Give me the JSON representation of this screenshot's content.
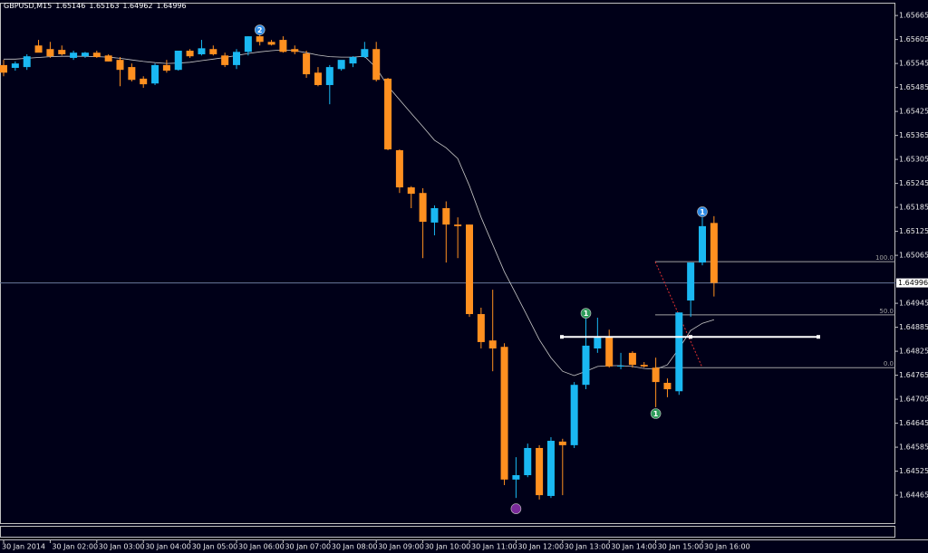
{
  "chart_data": {
    "type": "candlestick",
    "title": "GBPUSD,M15",
    "series": {
      "open": [
        1.65541,
        1.65534,
        1.65536,
        1.6559,
        1.65581,
        1.65579,
        1.65559,
        1.65563,
        1.65572,
        1.65565,
        1.65554,
        1.65536,
        1.65507,
        1.65495,
        1.65541,
        1.65529,
        1.65577,
        1.65568,
        1.65581,
        1.65565,
        1.65541,
        1.65574,
        1.65613,
        1.65599,
        1.65604,
        1.65581,
        1.6557,
        1.65522,
        1.65491,
        1.65531,
        1.65545,
        1.65561,
        1.65581,
        1.65507,
        1.65328,
        1.65235,
        1.65221,
        1.65147,
        1.65183,
        1.65142,
        1.65142,
        1.64918,
        1.64852,
        1.64836,
        1.64504,
        1.64515,
        1.64583,
        1.64463,
        1.64599,
        1.6459,
        1.64741,
        1.64832,
        1.64861,
        1.64787,
        1.64821,
        1.64791,
        1.64784,
        1.64746,
        1.64725,
        1.64952,
        1.65047,
        1.65146
      ],
      "high": [
        1.65554,
        1.6555,
        1.65568,
        1.65604,
        1.65599,
        1.6559,
        1.65577,
        1.65574,
        1.65577,
        1.65568,
        1.65561,
        1.65545,
        1.65513,
        1.65545,
        1.65554,
        1.65577,
        1.65581,
        1.65604,
        1.6559,
        1.65572,
        1.65581,
        1.65613,
        1.65622,
        1.65604,
        1.65613,
        1.6559,
        1.65577,
        1.65536,
        1.65541,
        1.65545,
        1.65563,
        1.65599,
        1.65599,
        1.65509,
        1.6533,
        1.65238,
        1.65233,
        1.6519,
        1.652,
        1.6516,
        1.65142,
        1.64934,
        1.64979,
        1.64845,
        1.6456,
        1.64594,
        1.6459,
        1.6461,
        1.64606,
        1.64748,
        1.64911,
        1.64909,
        1.64879,
        1.64821,
        1.64825,
        1.64798,
        1.64809,
        1.64757,
        1.64922,
        1.65047,
        1.6516,
        1.65163
      ],
      "low": [
        1.65513,
        1.65527,
        1.65529,
        1.65577,
        1.65559,
        1.65565,
        1.65554,
        1.65559,
        1.65559,
        1.6555,
        1.65488,
        1.655,
        1.65484,
        1.65491,
        1.65522,
        1.65527,
        1.65559,
        1.65565,
        1.65565,
        1.65536,
        1.65531,
        1.65565,
        1.6559,
        1.6559,
        1.65572,
        1.65568,
        1.65509,
        1.65488,
        1.65443,
        1.65527,
        1.65536,
        1.65559,
        1.655,
        1.65328,
        1.65221,
        1.65183,
        1.65058,
        1.65115,
        1.65047,
        1.65058,
        1.64911,
        1.64832,
        1.64775,
        1.6449,
        1.64458,
        1.6451,
        1.64454,
        1.64458,
        1.64465,
        1.64583,
        1.6473,
        1.64821,
        1.64784,
        1.6478,
        1.64784,
        1.64784,
        1.64685,
        1.6471,
        1.64716,
        1.64911,
        1.6504,
        1.64962
      ],
      "close": [
        1.65522,
        1.65545,
        1.65563,
        1.65572,
        1.65563,
        1.65568,
        1.65572,
        1.65572,
        1.65561,
        1.6555,
        1.65529,
        1.65504,
        1.65493,
        1.65541,
        1.65527,
        1.65577,
        1.65563,
        1.65583,
        1.65568,
        1.65541,
        1.65574,
        1.65613,
        1.65599,
        1.65592,
        1.65574,
        1.65574,
        1.65518,
        1.65491,
        1.65536,
        1.65554,
        1.65561,
        1.65581,
        1.65504,
        1.6533,
        1.65235,
        1.65219,
        1.65149,
        1.65183,
        1.65142,
        1.65138,
        1.64918,
        1.64848,
        1.64832,
        1.64504,
        1.64515,
        1.64583,
        1.64465,
        1.64601,
        1.6459,
        1.64741,
        1.64839,
        1.64859,
        1.64787,
        1.64789,
        1.64791,
        1.64787,
        1.64748,
        1.6473,
        1.64922,
        1.65047,
        1.65138,
        1.64996
      ]
    },
    "ma": [
      1.65556,
      1.65556,
      1.65558,
      1.6556,
      1.65562,
      1.65563,
      1.65563,
      1.65563,
      1.65562,
      1.65561,
      1.65558,
      1.65554,
      1.6555,
      1.65547,
      1.65545,
      1.65546,
      1.65548,
      1.65552,
      1.65556,
      1.6556,
      1.65565,
      1.6557,
      1.65574,
      1.65577,
      1.65579,
      1.65577,
      1.65572,
      1.65566,
      1.65562,
      1.65561,
      1.65561,
      1.65563,
      1.65534,
      1.65488,
      1.65454,
      1.6542,
      1.65387,
      1.65353,
      1.65334,
      1.65307,
      1.65239,
      1.6516,
      1.65092,
      1.65024,
      1.64968,
      1.64911,
      1.64854,
      1.64809,
      1.64775,
      1.64764,
      1.64775,
      1.64787,
      1.64789,
      1.64789,
      1.64787,
      1.64782,
      1.6478,
      1.64791,
      1.64832,
      1.64877,
      1.64895,
      1.64904
    ],
    "colors": {
      "up": "#1ab8f2",
      "down": "#ff9020",
      "ma": "#c8c8c8",
      "background": "#000018"
    },
    "ylim": [
      1.64395,
      1.65697
    ],
    "yticks": [
      1.65665,
      1.65605,
      1.65545,
      1.65485,
      1.65425,
      1.65365,
      1.65305,
      1.65245,
      1.65185,
      1.65125,
      1.65065,
      1.64945,
      1.64885,
      1.64825,
      1.64765,
      1.64705,
      1.64645,
      1.64585,
      1.64525,
      1.64465
    ],
    "xticks": [
      {
        "value": 0,
        "label": "30 Jan 2014"
      },
      {
        "value": 4,
        "label": "30 Jan 02:00"
      },
      {
        "value": 8,
        "label": "30 Jan 03:00"
      },
      {
        "value": 12,
        "label": "30 Jan 04:00"
      },
      {
        "value": 16,
        "label": "30 Jan 05:00"
      },
      {
        "value": 20,
        "label": "30 Jan 06:00"
      },
      {
        "value": 24,
        "label": "30 Jan 07:00"
      },
      {
        "value": 28,
        "label": "30 Jan 08:00"
      },
      {
        "value": 32,
        "label": "30 Jan 09:00"
      },
      {
        "value": 36,
        "label": "30 Jan 10:00"
      },
      {
        "value": 40,
        "label": "30 Jan 11:00"
      },
      {
        "value": 44,
        "label": "30 Jan 12:00"
      },
      {
        "value": 48,
        "label": "30 Jan 13:00"
      },
      {
        "value": 52,
        "label": "30 Jan 14:00"
      },
      {
        "value": 56,
        "label": "30 Jan 15:00"
      },
      {
        "value": 60,
        "label": "30 Jan 16:00"
      }
    ],
    "current_price": 1.64996,
    "hline": 1.64861,
    "fib_levels": [
      {
        "label": "100.0",
        "price": 1.65049
      },
      {
        "label": "50.0",
        "price": 1.64916
      },
      {
        "label": "0.0",
        "price": 1.64784
      }
    ],
    "markers": [
      {
        "label": "2",
        "candle": 22,
        "price": 1.65629,
        "color": "#2e8be6"
      },
      {
        "label": "1",
        "candle": 60,
        "price": 1.65174,
        "color": "#2e8be6"
      },
      {
        "label": "1",
        "candle": 50,
        "price": 1.6492,
        "color": "#2e9a5a"
      },
      {
        "label": "1",
        "candle": 56,
        "price": 1.64669,
        "color": "#2e9a5a"
      },
      {
        "candle": 44,
        "price": 1.64431,
        "color": "#7a2a9a"
      }
    ]
  }
}
